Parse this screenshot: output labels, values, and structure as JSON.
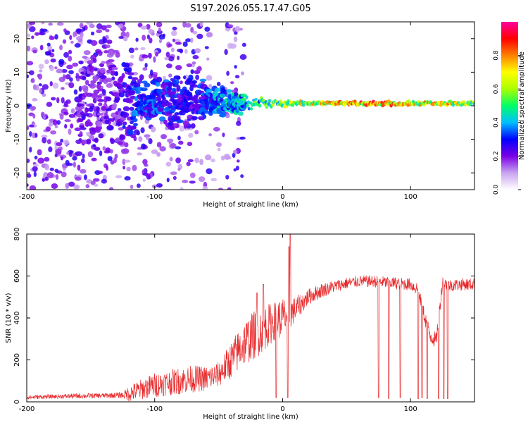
{
  "title": "S197.2026.055.17.47.G05",
  "chart_data": [
    {
      "type": "heatmap",
      "name": "spectrogram",
      "xlabel": "Height of straight line (km)",
      "ylabel": "Frequency (Hz)",
      "xlim": [
        -200,
        150
      ],
      "ylim": [
        -25,
        25
      ],
      "xticks": [
        -200,
        -100,
        0,
        100
      ],
      "xtick_labels": [
        "-200",
        "-100",
        "0",
        "100"
      ],
      "yticks": [
        -20,
        -10,
        0,
        10,
        20
      ],
      "ytick_labels": [
        "-20",
        "-10",
        "0",
        "10",
        "20"
      ],
      "colorbar": {
        "label": "Normalized spectral amplitude",
        "ticks": [
          0.0,
          0.2,
          0.4,
          0.6,
          0.8
        ],
        "tick_labels": [
          "0.0",
          "0.2",
          "0.4",
          "0.6",
          "0.8"
        ],
        "range": [
          0,
          1
        ],
        "colors": [
          "#ffffff",
          "#c9a3f0",
          "#7a00e6",
          "#0000ff",
          "#00bfff",
          "#00ff66",
          "#aaff00",
          "#ffff00",
          "#ff8000",
          "#ff0000",
          "#ff00a0"
        ]
      },
      "ridge": [
        {
          "x": -130,
          "spread": 20,
          "amp": 0.25
        },
        {
          "x": -110,
          "spread": 7,
          "amp": 0.4
        },
        {
          "x": -90,
          "spread": 8,
          "amp": 0.35
        },
        {
          "x": -70,
          "spread": 9,
          "amp": 0.3
        },
        {
          "x": -50,
          "spread": 5,
          "amp": 0.45
        },
        {
          "x": -30,
          "spread": 3,
          "amp": 0.5
        },
        {
          "x": -10,
          "spread": 1.5,
          "amp": 0.6
        },
        {
          "x": 10,
          "spread": 0.8,
          "amp": 0.75
        },
        {
          "x": 40,
          "spread": 0.8,
          "amp": 0.85
        },
        {
          "x": 70,
          "spread": 0.8,
          "amp": 0.9
        },
        {
          "x": 100,
          "spread": 0.8,
          "amp": 0.8
        },
        {
          "x": 120,
          "spread": 0.8,
          "amp": 0.85
        },
        {
          "x": 150,
          "spread": 0.8,
          "amp": 0.7
        }
      ]
    },
    {
      "type": "line",
      "name": "snr",
      "xlabel": "Height of straight line (km)",
      "ylabel": "SNR (10 * v/v)",
      "xlim": [
        -200,
        150
      ],
      "ylim": [
        0,
        800
      ],
      "xticks": [
        -200,
        -100,
        0,
        100
      ],
      "xtick_labels": [
        "-200",
        "-100",
        "0",
        "100"
      ],
      "yticks": [
        0,
        200,
        400,
        600,
        800
      ],
      "ytick_labels": [
        "0",
        "200",
        "400",
        "600",
        "800"
      ],
      "color": "#e8292b",
      "x": [
        -200,
        -180,
        -160,
        -140,
        -125,
        -120,
        -110,
        -100,
        -90,
        -80,
        -70,
        -60,
        -50,
        -40,
        -30,
        -20,
        -10,
        -5,
        0,
        5,
        10,
        15,
        20,
        30,
        40,
        50,
        60,
        70,
        80,
        90,
        100,
        105,
        110,
        115,
        120,
        125,
        130,
        140,
        150
      ],
      "y": [
        22,
        25,
        28,
        30,
        32,
        40,
        60,
        80,
        90,
        100,
        110,
        110,
        130,
        200,
        280,
        330,
        370,
        390,
        400,
        420,
        440,
        470,
        500,
        530,
        550,
        565,
        575,
        575,
        570,
        565,
        560,
        540,
        430,
        320,
        290,
        570,
        555,
        560,
        560
      ],
      "noise": [
        10,
        10,
        12,
        12,
        15,
        40,
        50,
        60,
        60,
        65,
        65,
        60,
        60,
        90,
        110,
        120,
        100,
        90,
        100,
        80,
        60,
        50,
        40,
        35,
        30,
        28,
        28,
        28,
        30,
        30,
        30,
        35,
        40,
        40,
        40,
        30,
        30,
        30,
        30
      ],
      "dips": [
        {
          "x": -5,
          "y": 20
        },
        {
          "x": 4,
          "y": 20
        },
        {
          "x": 75,
          "y": 20
        },
        {
          "x": 83,
          "y": 15
        },
        {
          "x": 92,
          "y": 20
        },
        {
          "x": 106,
          "y": 15
        },
        {
          "x": 109,
          "y": 20
        },
        {
          "x": 113,
          "y": 15
        },
        {
          "x": 122,
          "y": 15
        },
        {
          "x": 126,
          "y": 15
        },
        {
          "x": 129,
          "y": 15
        }
      ],
      "spikes": [
        {
          "x": 6,
          "y": 800
        },
        {
          "x": 5,
          "y": 740
        },
        {
          "x": -20,
          "y": 520
        },
        {
          "x": -15,
          "y": 560
        }
      ]
    }
  ]
}
